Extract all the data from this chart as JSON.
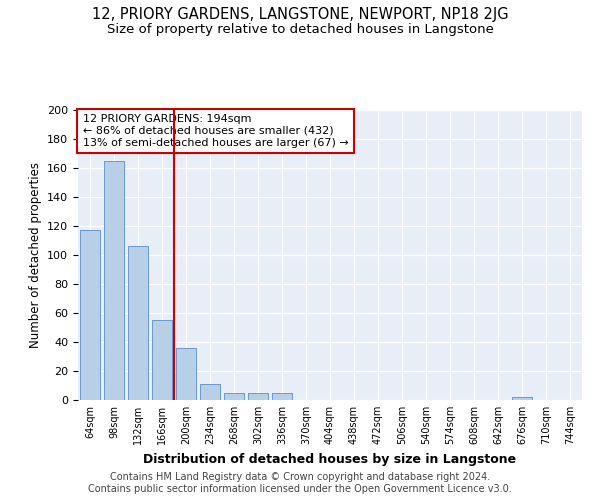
{
  "title": "12, PRIORY GARDENS, LANGSTONE, NEWPORT, NP18 2JG",
  "subtitle": "Size of property relative to detached houses in Langstone",
  "xlabel": "Distribution of detached houses by size in Langstone",
  "ylabel": "Number of detached properties",
  "categories": [
    "64sqm",
    "98sqm",
    "132sqm",
    "166sqm",
    "200sqm",
    "234sqm",
    "268sqm",
    "302sqm",
    "336sqm",
    "370sqm",
    "404sqm",
    "438sqm",
    "472sqm",
    "506sqm",
    "540sqm",
    "574sqm",
    "608sqm",
    "642sqm",
    "676sqm",
    "710sqm",
    "744sqm"
  ],
  "bar_values": [
    117,
    165,
    106,
    55,
    36,
    11,
    5,
    5,
    5,
    0,
    0,
    0,
    0,
    0,
    0,
    0,
    0,
    0,
    2,
    0,
    0
  ],
  "bar_color": "#b8cfe8",
  "bar_edge_color": "#5b8cc8",
  "annotation_line1": "12 PRIORY GARDENS: 194sqm",
  "annotation_line2": "← 86% of detached houses are smaller (432)",
  "annotation_line3": "13% of semi-detached houses are larger (67) →",
  "annotation_box_color": "#ffffff",
  "annotation_box_edge_color": "#cc0000",
  "vline_color": "#cc0000",
  "ylim": [
    0,
    200
  ],
  "yticks": [
    0,
    20,
    40,
    60,
    80,
    100,
    120,
    140,
    160,
    180,
    200
  ],
  "background_color": "#e8eef8",
  "footer_text": "Contains HM Land Registry data © Crown copyright and database right 2024.\nContains public sector information licensed under the Open Government Licence v3.0.",
  "title_fontsize": 10.5,
  "subtitle_fontsize": 9.5,
  "xlabel_fontsize": 9,
  "ylabel_fontsize": 8.5,
  "footer_fontsize": 7
}
